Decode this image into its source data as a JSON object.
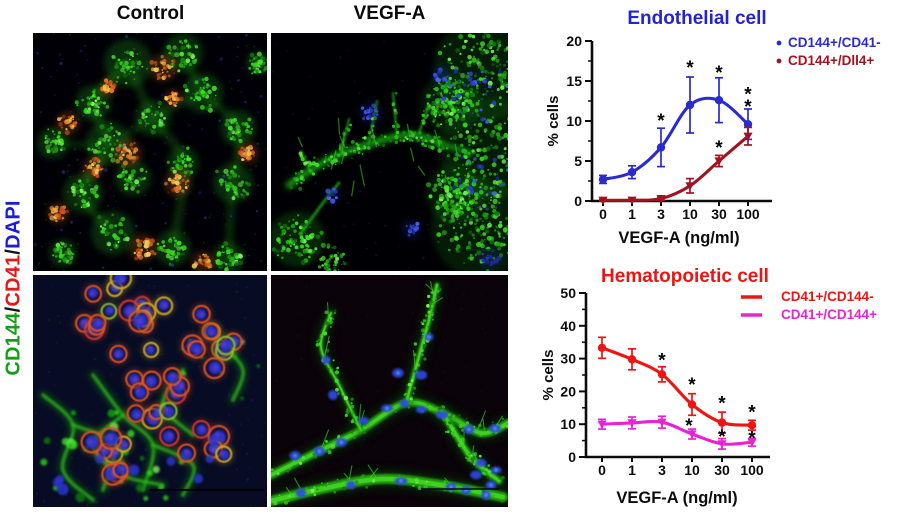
{
  "figure": {
    "column_headers": [
      {
        "label": "Control"
      },
      {
        "label": "VEGF-A"
      }
    ],
    "stain_label": {
      "parts": [
        {
          "text": "CD144",
          "color": "#14a014"
        },
        {
          "text": "/",
          "color": "#151515"
        },
        {
          "text": "CD41",
          "color": "#e61717"
        },
        {
          "text": "/",
          "color": "#151515"
        },
        {
          "text": "DAPI",
          "color": "#1c1cdc"
        }
      ]
    }
  },
  "chart_data": [
    {
      "type": "line",
      "title": "Endothelial cell",
      "title_color": "#2424cc",
      "xlabel": "VEGF-A (ng/ml)",
      "ylabel": "% cells",
      "categories": [
        "0",
        "1",
        "3",
        "10",
        "30",
        "100"
      ],
      "ylim": [
        0,
        20
      ],
      "yticks": [
        0,
        5,
        10,
        15,
        20
      ],
      "yminorticks": [
        2.5,
        7.5,
        12.5,
        17.5
      ],
      "grid": false,
      "legend_position": "right-top",
      "legend_marker": "dot",
      "series": [
        {
          "name": "CD144+/CD41-",
          "color": "#2a2ad2",
          "marker": "circle",
          "values": [
            2.7,
            3.6,
            6.7,
            12.0,
            12.6,
            9.6
          ],
          "errors": [
            0.5,
            0.8,
            2.4,
            3.5,
            2.8,
            1.9
          ]
        },
        {
          "name": "CD144+/Dll4+",
          "color": "#a01420",
          "marker": "triangle-down",
          "values": [
            0.1,
            0.1,
            0.3,
            1.9,
            5.0,
            8.1
          ],
          "errors": [
            0.1,
            0.1,
            0.2,
            0.9,
            0.7,
            1.1
          ]
        }
      ],
      "annotations": [
        {
          "x": 2,
          "y": 10.4,
          "text": "*"
        },
        {
          "x": 3,
          "y": 17.0,
          "text": "*"
        },
        {
          "x": 4,
          "y": 16.4,
          "text": "*"
        },
        {
          "x": 5,
          "y": 13.7,
          "text": "*"
        },
        {
          "x": 5,
          "y": 12.1,
          "text": "*"
        },
        {
          "x": 4,
          "y": 7.0,
          "text": "*"
        }
      ]
    },
    {
      "type": "line",
      "title": "Hematopoietic cell",
      "title_color": "#ee1414",
      "xlabel": "VEGF-A (ng/ml)",
      "ylabel": "% cells",
      "categories": [
        "0",
        "1",
        "3",
        "10",
        "30",
        "100"
      ],
      "ylim": [
        0,
        50
      ],
      "yticks": [
        0,
        10,
        20,
        30,
        40,
        50
      ],
      "yminorticks": [
        5,
        15,
        25,
        35,
        45
      ],
      "grid": false,
      "legend_position": "right-top",
      "legend_marker": "line",
      "series": [
        {
          "name": "CD41+/CD144-",
          "color": "#ee1414",
          "marker": "circle",
          "values": [
            33.3,
            29.8,
            25.2,
            16.0,
            10.5,
            9.7
          ],
          "errors": [
            3.2,
            3.2,
            2.3,
            3.3,
            3.2,
            1.5
          ]
        },
        {
          "name": "CD41+/CD144+",
          "color": "#e922d2",
          "marker": "triangle-down",
          "values": [
            10.0,
            10.4,
            10.6,
            7.0,
            4.0,
            4.5
          ],
          "errors": [
            1.5,
            1.8,
            1.8,
            1.5,
            1.6,
            1.2
          ]
        }
      ],
      "annotations": [
        {
          "x": 2,
          "y": 30.3,
          "text": "*"
        },
        {
          "x": 3,
          "y": 22.8,
          "text": "*"
        },
        {
          "x": 4,
          "y": 17.3,
          "text": "*"
        },
        {
          "x": 5,
          "y": 14.5,
          "text": "*"
        },
        {
          "x": 2.9,
          "y": 10.3,
          "text": "*"
        },
        {
          "x": 4,
          "y": 7.0,
          "text": "*"
        },
        {
          "x": 5,
          "y": 6.6,
          "text": "*"
        }
      ]
    }
  ]
}
